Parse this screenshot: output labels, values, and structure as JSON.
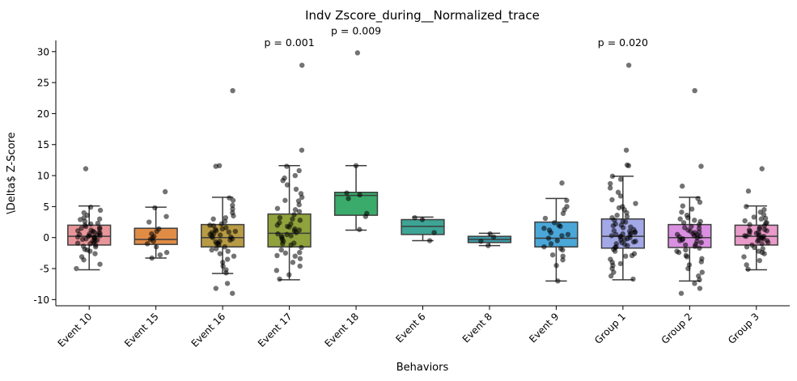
{
  "chart_data": {
    "type": "box",
    "title": "Indv Zscore_during__Normalized_trace",
    "xlabel": "Behaviors",
    "ylabel": "\\Delta$ Z-Score",
    "ylim": [
      -11,
      31.8
    ],
    "yticks": [
      -10,
      -5,
      0,
      5,
      10,
      15,
      20,
      25,
      30
    ],
    "grid": false,
    "legend": "none",
    "categories": [
      "Event 10",
      "Event 15",
      "Event 16",
      "Event 17",
      "Event 18",
      "Event 6",
      "Event 8",
      "Event 9",
      "Group 1",
      "Group 2",
      "Group 3"
    ],
    "boxes": [
      {
        "name": "Event 10",
        "color": "#e8959a",
        "min": -5.2,
        "q1": -1.2,
        "median": 0.2,
        "q3": 2.0,
        "max": 5.1,
        "outliers": [
          11.1
        ],
        "points": [
          -5.0,
          -4.3,
          -3.6,
          -3.1,
          -2.6,
          -2.2,
          -1.9,
          -1.5,
          -1.2,
          -1.0,
          -0.8,
          -0.6,
          -0.4,
          -0.3,
          -0.2,
          -0.1,
          0.0,
          0.1,
          0.1,
          0.2,
          0.3,
          0.4,
          0.5,
          0.6,
          0.7,
          0.9,
          1.0,
          1.2,
          1.4,
          1.6,
          1.8,
          2.0,
          2.3,
          2.6,
          2.9,
          3.2,
          3.6,
          4.0,
          4.4,
          4.9,
          -0.5,
          0.8,
          1.1,
          -1.4,
          2.2,
          0.3,
          -2.0,
          1.5,
          3.0,
          -0.9,
          11.1
        ]
      },
      {
        "name": "Event 15",
        "color": "#e08c45",
        "min": -3.3,
        "q1": -1.1,
        "median": -0.3,
        "q3": 1.5,
        "max": 4.9,
        "outliers": [
          7.4
        ],
        "points": [
          -3.3,
          -2.8,
          -2.4,
          -1.5,
          -1.0,
          -0.6,
          -0.3,
          -0.1,
          0.2,
          0.6,
          1.0,
          1.4,
          2.5,
          3.4,
          4.8,
          7.4
        ]
      },
      {
        "name": "Event 16",
        "color": "#b89b45",
        "min": -5.8,
        "q1": -1.5,
        "median": 0.0,
        "q3": 2.1,
        "max": 6.5,
        "outliers": [
          -7.4,
          -8.2,
          -9.0,
          11.5,
          11.6,
          23.7
        ],
        "points": [
          -5.7,
          -5.2,
          -4.6,
          -4.0,
          -3.5,
          -3.0,
          -2.6,
          -2.2,
          -1.8,
          -1.5,
          -1.2,
          -0.9,
          -0.6,
          -0.4,
          -0.2,
          0.0,
          0.1,
          0.2,
          0.4,
          0.6,
          0.8,
          1.0,
          1.3,
          1.6,
          1.9,
          2.2,
          2.6,
          3.0,
          3.5,
          4.0,
          4.6,
          5.2,
          6.0,
          6.4,
          -1.0,
          0.5,
          1.1,
          -2.0,
          2.0,
          3.2,
          -0.7,
          0.9,
          1.4,
          -7.4,
          -8.2,
          -9.0,
          11.5,
          11.6,
          23.7
        ]
      },
      {
        "name": "Event 17",
        "color": "#8fa23c",
        "min": -6.8,
        "q1": -1.5,
        "median": 0.7,
        "q3": 3.8,
        "max": 11.6,
        "outliers": [
          14.1,
          27.8
        ],
        "points": [
          -6.7,
          -6.0,
          -5.3,
          -4.6,
          -4.0,
          -3.4,
          -2.9,
          -2.4,
          -2.0,
          -1.6,
          -1.2,
          -0.9,
          -0.6,
          -0.3,
          0.0,
          0.3,
          0.6,
          0.8,
          1.1,
          1.4,
          1.7,
          2.0,
          2.4,
          2.8,
          3.2,
          3.7,
          4.2,
          4.7,
          5.3,
          5.9,
          6.5,
          7.1,
          7.8,
          8.5,
          9.2,
          10.0,
          10.8,
          11.5,
          -1.0,
          0.5,
          1.2,
          2.2,
          -2.5,
          3.0,
          4.5,
          6.0,
          -3.0,
          1.8,
          0.2,
          9.6,
          14.1,
          27.8
        ]
      },
      {
        "name": "Event 18",
        "color": "#3aab6b",
        "min": 1.2,
        "q1": 3.6,
        "median": 6.8,
        "q3": 7.3,
        "max": 11.6,
        "outliers": [
          29.8
        ],
        "points": [
          1.3,
          3.4,
          3.9,
          6.3,
          6.9,
          7.2,
          11.6,
          29.8
        ]
      },
      {
        "name": "Event 6",
        "color": "#3ea495",
        "min": -0.5,
        "q1": 0.5,
        "median": 1.8,
        "q3": 2.9,
        "max": 3.3,
        "outliers": [],
        "points": [
          -0.5,
          0.8,
          2.9,
          3.2
        ]
      },
      {
        "name": "Event 8",
        "color": "#3e9aa5",
        "min": -1.3,
        "q1": -0.8,
        "median": -0.3,
        "q3": 0.2,
        "max": 0.7,
        "outliers": [],
        "points": [
          -1.3,
          -0.6,
          0.1,
          0.6
        ]
      },
      {
        "name": "Event 9",
        "color": "#4aa7d8",
        "min": -7.0,
        "q1": -1.5,
        "median": -0.1,
        "q3": 2.5,
        "max": 6.3,
        "outliers": [
          8.8
        ],
        "points": [
          -7.0,
          -4.5,
          -3.6,
          -2.8,
          -2.0,
          -1.5,
          -1.0,
          -0.5,
          -0.1,
          0.3,
          0.8,
          1.2,
          1.8,
          2.4,
          3.1,
          3.9,
          4.5,
          5.0,
          6.0,
          -1.8,
          0.5,
          1.5,
          -3.0,
          2.0,
          8.8
        ]
      },
      {
        "name": "Group 1",
        "color": "#a3a8e6",
        "min": -6.8,
        "q1": -1.7,
        "median": 0.2,
        "q3": 3.0,
        "max": 9.9,
        "outliers": [
          11.6,
          11.7,
          14.1,
          27.8
        ],
        "points": [
          -6.7,
          -6.2,
          -5.6,
          -5.0,
          -4.5,
          -4.0,
          -3.5,
          -3.0,
          -2.6,
          -2.2,
          -1.9,
          -1.6,
          -1.3,
          -1.0,
          -0.8,
          -0.6,
          -0.4,
          -0.2,
          0.0,
          0.1,
          0.2,
          0.3,
          0.5,
          0.7,
          0.9,
          1.1,
          1.3,
          1.6,
          1.9,
          2.2,
          2.5,
          2.8,
          3.2,
          3.6,
          4.0,
          4.5,
          5.0,
          5.5,
          6.1,
          6.7,
          7.3,
          8.0,
          8.7,
          9.4,
          9.9,
          -1.5,
          -0.7,
          0.4,
          1.0,
          2.0,
          -2.9,
          0.8,
          1.7,
          3.4,
          -0.3,
          4.8,
          -4.2,
          2.6,
          0.6,
          -1.1,
          11.6,
          11.7,
          14.1,
          27.8
        ]
      },
      {
        "name": "Group 2",
        "color": "#da8fe0",
        "min": -7.0,
        "q1": -1.6,
        "median": 0.0,
        "q3": 2.1,
        "max": 6.5,
        "outliers": [
          -7.4,
          -8.2,
          -9.0,
          8.3,
          11.5,
          23.7
        ],
        "points": [
          -6.8,
          -6.2,
          -5.6,
          -5.0,
          -4.4,
          -3.9,
          -3.4,
          -2.9,
          -2.4,
          -2.0,
          -1.7,
          -1.4,
          -1.1,
          -0.8,
          -0.6,
          -0.4,
          -0.2,
          0.0,
          0.1,
          0.2,
          0.4,
          0.6,
          0.8,
          1.0,
          1.2,
          1.5,
          1.8,
          2.1,
          2.4,
          2.8,
          3.2,
          3.6,
          4.1,
          4.6,
          5.1,
          5.7,
          6.3,
          -1.2,
          0.3,
          0.9,
          -0.5,
          1.6,
          2.6,
          -2.2,
          3.0,
          -3.1,
          0.5,
          -7.4,
          -8.2,
          -9.0,
          8.3,
          11.5,
          23.7
        ]
      },
      {
        "name": "Group 3",
        "color": "#e89ac8",
        "min": -5.2,
        "q1": -1.2,
        "median": 0.2,
        "q3": 2.0,
        "max": 5.1,
        "outliers": [
          7.5,
          11.1
        ],
        "points": [
          -5.1,
          -4.4,
          -3.7,
          -3.1,
          -2.6,
          -2.2,
          -1.8,
          -1.5,
          -1.2,
          -1.0,
          -0.8,
          -0.6,
          -0.4,
          -0.2,
          -0.1,
          0.0,
          0.1,
          0.2,
          0.3,
          0.4,
          0.6,
          0.8,
          1.0,
          1.2,
          1.4,
          1.6,
          1.9,
          2.1,
          2.4,
          2.7,
          3.0,
          3.3,
          3.7,
          4.1,
          4.5,
          5.0,
          -0.5,
          0.7,
          1.3,
          -1.6,
          2.3,
          0.2,
          -2.4,
          1.1,
          3.1,
          7.5,
          11.1
        ]
      }
    ],
    "annotations": [
      {
        "text": "p = 0.001",
        "category": "Event 17",
        "y": 30.9
      },
      {
        "text": "p = 0.009",
        "category": "Event 18",
        "y": 32.8
      },
      {
        "text": "p = 0.020",
        "category": "Group 1",
        "y": 30.9
      }
    ]
  }
}
